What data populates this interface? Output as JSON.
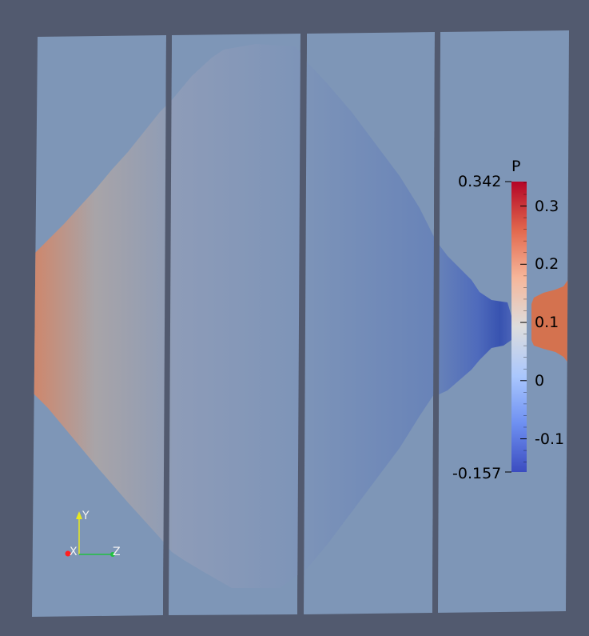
{
  "scalar_bar": {
    "title": "P",
    "max_label": "0.342",
    "min_label": "-0.157",
    "max": 0.342,
    "min": -0.157,
    "tick_labels": [
      "0.3",
      "0.2",
      "0.1",
      "0",
      "-0.1"
    ],
    "ticks": [
      0.3,
      0.2,
      0.1,
      0,
      -0.1
    ],
    "colormap": [
      "#3b4cc0",
      "#6f91f2",
      "#aac7fd",
      "#dddddd",
      "#f6b69a",
      "#e2694e",
      "#b40426"
    ]
  },
  "axes_widget": {
    "x_label": "X",
    "y_label": "Y",
    "z_label": "Z",
    "x_color": "#ff2020",
    "y_color": "#e8e820",
    "z_color": "#20c040"
  },
  "colors": {
    "background": "#525a6f",
    "neutral_field": "#7e96b7",
    "high_pressure": "#d4724f",
    "low_pressure": "#3c5bb4"
  }
}
